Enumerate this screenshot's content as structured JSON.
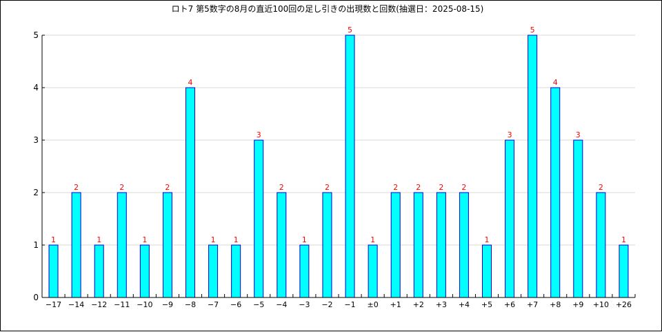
{
  "chart_data": {
    "type": "bar",
    "title": "ロト7 第5数字の8月の直近100回の足し引きの出現数と回数(抽選日：2025-08-15)",
    "xlabel": "",
    "ylabel": "",
    "categories": [
      "−17",
      "−14",
      "−12",
      "−11",
      "−10",
      "−9",
      "−8",
      "−7",
      "−6",
      "−5",
      "−4",
      "−3",
      "−2",
      "−1",
      "±0",
      "+1",
      "+2",
      "+3",
      "+4",
      "+5",
      "+6",
      "+7",
      "+8",
      "+9",
      "+10",
      "+26"
    ],
    "values": [
      1,
      2,
      1,
      2,
      1,
      2,
      4,
      1,
      1,
      3,
      2,
      1,
      2,
      5,
      1,
      2,
      2,
      2,
      2,
      1,
      3,
      5,
      4,
      3,
      2,
      1
    ],
    "ylim": [
      0,
      5
    ],
    "yticks": [
      0,
      1,
      2,
      3,
      4,
      5
    ],
    "grid": true,
    "legend": "none",
    "colors": {
      "bar_fill": "#00ffff",
      "bar_stroke": "#0000cc",
      "data_label": "#ff0000",
      "grid": "#d8d8d8",
      "axis": "#000000"
    }
  }
}
